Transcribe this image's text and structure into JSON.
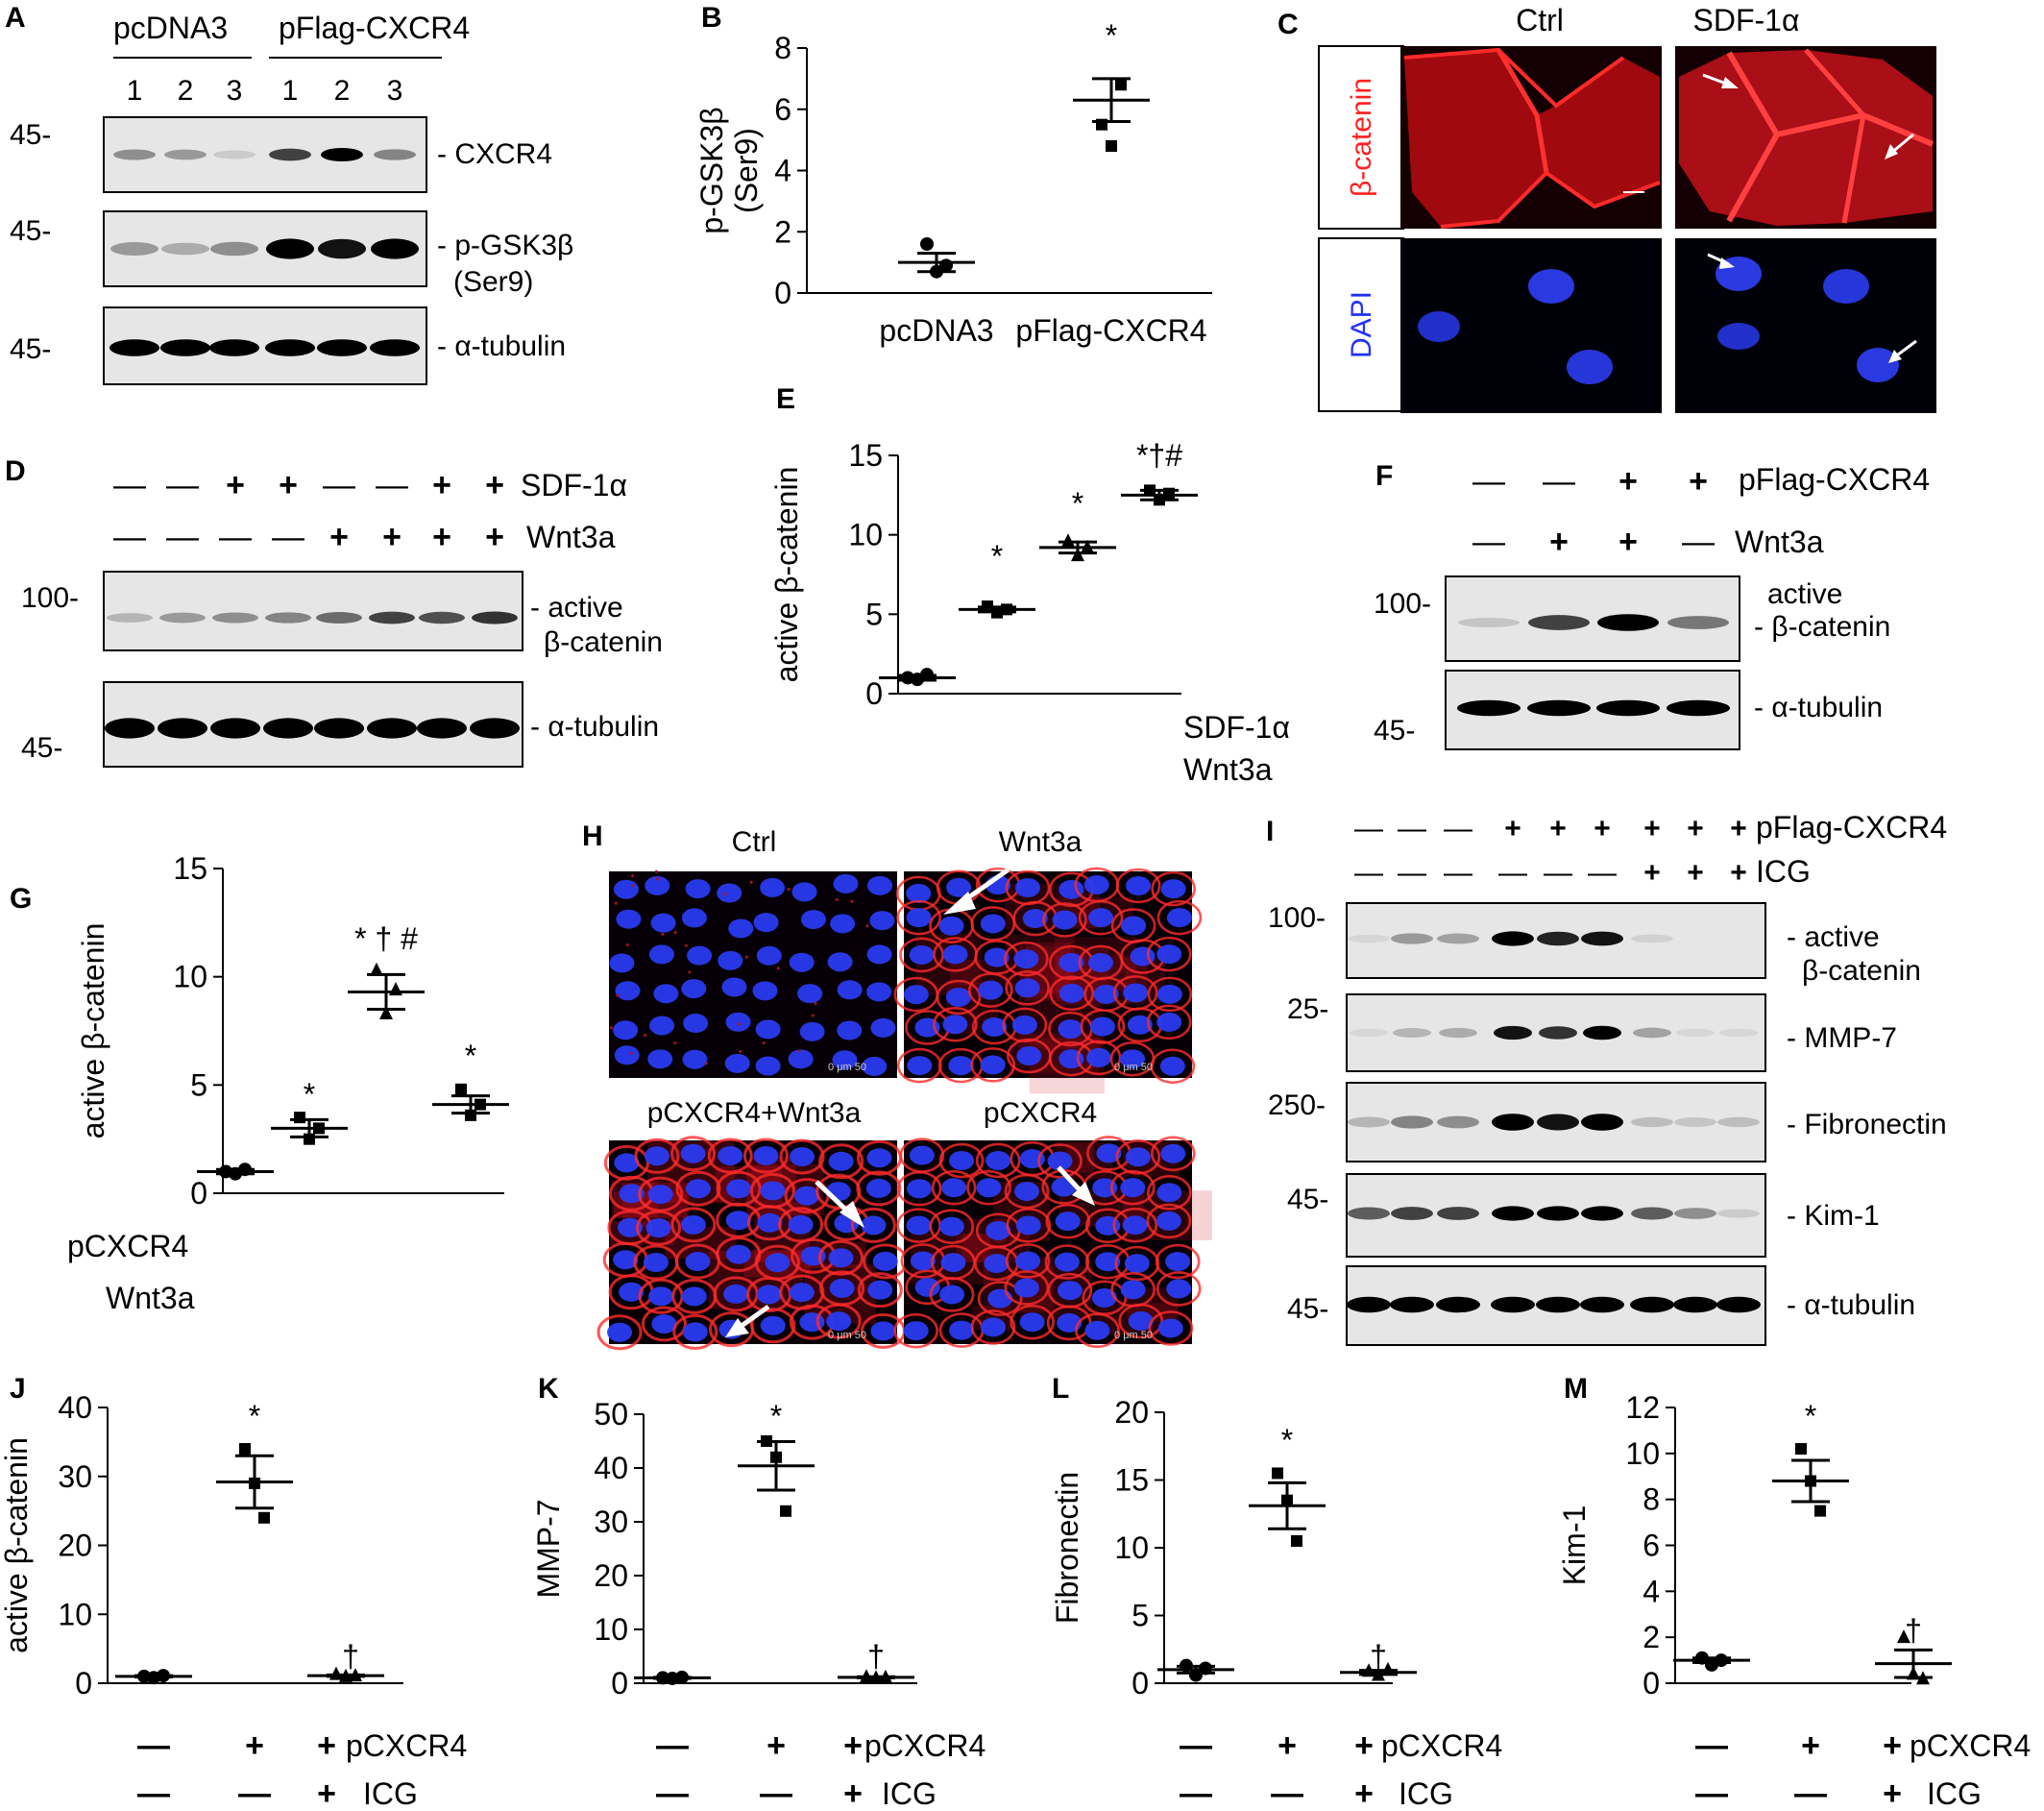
{
  "colors": {
    "red_channel": "#ff2a2a",
    "blue_channel": "#2030ff",
    "micro_bg": "#050008",
    "blot_bg": "#e6e6e6"
  },
  "panels": {
    "A": {
      "label": "A",
      "group1": "pcDNA3",
      "group2": "pFlag-CXCR4",
      "lanes": [
        "1",
        "2",
        "3",
        "1",
        "2",
        "3"
      ],
      "mw": [
        "45-",
        "45-",
        "45-"
      ],
      "bands": [
        "- CXCR4",
        "- p-GSK3β",
        "(Ser9)",
        "- α-tubulin"
      ],
      "intensity": {
        "cxcr4": [
          0.5,
          0.45,
          0.15,
          0.8,
          1.0,
          0.55
        ],
        "pgsk": [
          0.45,
          0.35,
          0.5,
          1.0,
          0.95,
          1.0
        ],
        "tubulin": [
          1,
          1,
          1,
          1,
          1,
          1
        ]
      }
    },
    "B": {
      "label": "B",
      "star": "*"
    },
    "C": {
      "label": "C",
      "cols": [
        "Ctrl",
        "SDF-1α"
      ],
      "rows": [
        "β-catenin",
        "DAPI"
      ]
    },
    "D": {
      "label": "D",
      "treat1": "SDF-1α",
      "treat2": "Wnt3a",
      "signs1": [
        "—",
        "—",
        "+",
        "+",
        "—",
        "—",
        "+",
        "+"
      ],
      "signs2": [
        "—",
        "—",
        "—",
        "—",
        "+",
        "+",
        "+",
        "+"
      ],
      "mw": [
        "100-",
        "45-"
      ],
      "bands": [
        "- active",
        "β-catenin",
        "- α-tubulin"
      ],
      "intensity": {
        "active": [
          0.3,
          0.45,
          0.5,
          0.55,
          0.65,
          0.8,
          0.75,
          0.85
        ],
        "tubulin": [
          1,
          1,
          1,
          1,
          1,
          1,
          1,
          1
        ]
      }
    },
    "E": {
      "label": "E",
      "stars": [
        "*",
        "*",
        "*†#"
      ],
      "treat1": "SDF-1α",
      "treat2": "Wnt3a",
      "signs1": [
        "—",
        "+",
        "—",
        "+"
      ],
      "signs2": [
        "—",
        "—",
        "+",
        "+"
      ]
    },
    "F": {
      "label": "F",
      "treat1": "pFlag-CXCR4",
      "treat2": "Wnt3a",
      "signs1": [
        "—",
        "—",
        "+",
        "+"
      ],
      "signs2": [
        "—",
        "+",
        "+",
        "—"
      ],
      "mw": [
        "100-",
        "45-"
      ],
      "bands": [
        "active",
        "- β-catenin",
        "- α-tubulin"
      ],
      "intensity": {
        "active": [
          0.2,
          0.8,
          1.0,
          0.6
        ],
        "tubulin": [
          1,
          1,
          1,
          1
        ]
      }
    },
    "G": {
      "label": "G",
      "stars": [
        "*",
        "* † #",
        "*"
      ],
      "treat1": "pCXCR4",
      "treat2": "Wnt3a",
      "signs1": [
        "—",
        "—",
        "+",
        "+"
      ],
      "signs2": [
        "—",
        "+",
        "+",
        "—"
      ]
    },
    "H": {
      "label": "H",
      "titles": [
        "Ctrl",
        "Wnt3a",
        "pCXCR4+Wnt3a",
        "pCXCR4"
      ],
      "scale": "0    μm    50"
    },
    "I": {
      "label": "I",
      "treat1": "pFlag-CXCR4",
      "treat2": "ICG",
      "signs1": [
        "—",
        "—",
        "—",
        "+",
        "+",
        "+",
        "+",
        "+",
        "+"
      ],
      "signs2": [
        "—",
        "—",
        "—",
        "—",
        "—",
        "—",
        "+",
        "+",
        "+"
      ],
      "mw": [
        "100-",
        "25-",
        "250-",
        "45-",
        "45-"
      ],
      "bands": [
        "- active",
        "β-catenin",
        "- MMP-7",
        "- Fibronectin",
        "- Kim-1",
        "- α-tubulin"
      ],
      "intensity": {
        "active": [
          0.05,
          0.45,
          0.4,
          1.0,
          0.9,
          0.95,
          0.1,
          0,
          0
        ],
        "mmp7": [
          0.05,
          0.3,
          0.35,
          0.95,
          0.85,
          1.0,
          0.4,
          0.05,
          0.05
        ],
        "fn": [
          0.3,
          0.55,
          0.5,
          1.0,
          0.95,
          1.0,
          0.25,
          0.2,
          0.25
        ],
        "kim": [
          0.7,
          0.8,
          0.8,
          1.0,
          1.0,
          1.0,
          0.7,
          0.5,
          0.15
        ],
        "tubulin": [
          1,
          1,
          1,
          1,
          1,
          1,
          1,
          1,
          1
        ]
      }
    },
    "J": {
      "label": "J"
    },
    "K": {
      "label": "K"
    },
    "L": {
      "label": "L"
    },
    "M": {
      "label": "M"
    },
    "JM": {
      "stars": [
        "*",
        "†"
      ],
      "treat1": "pCXCR4",
      "treat2": "ICG",
      "signs1": [
        "—",
        "+",
        "+"
      ],
      "signs2": [
        "—",
        "—",
        "+"
      ]
    }
  },
  "chart_data": [
    {
      "id": "B",
      "type": "scatter",
      "ylabel": "p-GSK3β\n(Ser9)",
      "categories": [
        "pcDNA3",
        "pFlag-CXCR4"
      ],
      "points": [
        [
          1.6,
          0.7,
          0.9
        ],
        [
          5.5,
          4.8,
          6.8
        ]
      ],
      "means": [
        1.0,
        6.3
      ],
      "sems": [
        0.3,
        0.7
      ],
      "ylim": [
        0,
        8
      ],
      "yticks": [
        0,
        2,
        4,
        6,
        8
      ]
    },
    {
      "id": "E",
      "type": "scatter",
      "ylabel": "active β-catenin",
      "categories": [
        "",
        "",
        "",
        ""
      ],
      "points": [
        [
          1.0,
          0.9,
          1.2
        ],
        [
          5.5,
          5.1,
          5.3
        ],
        [
          9.6,
          8.7,
          9.2
        ],
        [
          12.8,
          12.2,
          12.6
        ]
      ],
      "means": [
        1.0,
        5.3,
        9.2,
        12.5
      ],
      "sems": [
        0.15,
        0.15,
        0.35,
        0.3
      ],
      "ylim": [
        0,
        15
      ],
      "yticks": [
        0,
        5,
        10,
        15
      ]
    },
    {
      "id": "G",
      "type": "scatter",
      "ylabel": "active β-catenin",
      "categories": [
        "",
        "",
        "",
        ""
      ],
      "points": [
        [
          1.0,
          0.9,
          1.1
        ],
        [
          3.5,
          2.5,
          3.0
        ],
        [
          10.3,
          8.3,
          9.4
        ],
        [
          4.8,
          3.6,
          4.1
        ]
      ],
      "means": [
        1.0,
        3.0,
        9.3,
        4.1
      ],
      "sems": [
        0.1,
        0.4,
        0.8,
        0.4
      ],
      "ylim": [
        0,
        15
      ],
      "yticks": [
        0,
        5,
        10,
        15
      ]
    },
    {
      "id": "J",
      "type": "scatter",
      "ylabel": "active β-catenin",
      "categories": [
        "",
        "",
        ""
      ],
      "points": [
        [
          1.0,
          0.8,
          1.1
        ],
        [
          34,
          29,
          24
        ],
        [
          1.3,
          1.0,
          1.1
        ]
      ],
      "means": [
        1.0,
        29.2,
        1.1
      ],
      "sems": [
        0.1,
        3.8,
        0.1
      ],
      "ylim": [
        0,
        40
      ],
      "yticks": [
        0,
        10,
        20,
        30,
        40
      ]
    },
    {
      "id": "K",
      "type": "scatter",
      "ylabel": "MMP-7",
      "categories": [
        "",
        "",
        ""
      ],
      "points": [
        [
          1.0,
          0.9,
          1.1
        ],
        [
          45,
          42,
          32
        ],
        [
          1.2,
          1.0,
          1.1
        ]
      ],
      "means": [
        1.0,
        40.4,
        1.1
      ],
      "sems": [
        0.1,
        4.5,
        0.1
      ],
      "ylim": [
        0,
        50
      ],
      "yticks": [
        0,
        10,
        20,
        30,
        40,
        50
      ]
    },
    {
      "id": "L",
      "type": "scatter",
      "ylabel": "Fibronectin",
      "categories": [
        "",
        "",
        ""
      ],
      "points": [
        [
          1.3,
          0.6,
          1.1
        ],
        [
          15.5,
          13.5,
          10.5
        ],
        [
          0.9,
          0.6,
          1.0
        ]
      ],
      "means": [
        1.0,
        13.1,
        0.8
      ],
      "sems": [
        0.25,
        1.7,
        0.15
      ],
      "ylim": [
        0,
        20
      ],
      "yticks": [
        0,
        5,
        10,
        15,
        20
      ]
    },
    {
      "id": "M",
      "type": "scatter",
      "ylabel": "Kim-1",
      "categories": [
        "",
        "",
        ""
      ],
      "points": [
        [
          1.1,
          0.8,
          1.0
        ],
        [
          10.2,
          8.8,
          7.5
        ],
        [
          2.0,
          0.4,
          0.2
        ]
      ],
      "means": [
        1.0,
        8.8,
        0.85
      ],
      "sems": [
        0.1,
        0.9,
        0.6
      ],
      "ylim": [
        0,
        12
      ],
      "yticks": [
        0,
        2,
        4,
        6,
        8,
        10,
        12
      ]
    }
  ]
}
